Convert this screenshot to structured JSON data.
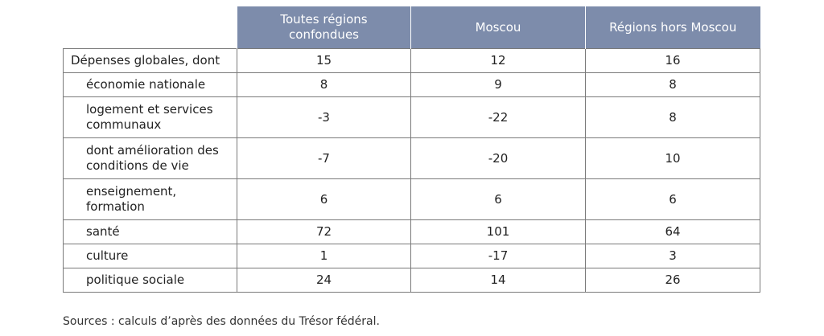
{
  "table": {
    "headers": [
      "",
      "Toutes régions confondues",
      "Moscou",
      "Régions hors Moscou"
    ],
    "rows": [
      {
        "label": "Dépenses globales, dont",
        "values": [
          "15",
          "12",
          "16"
        ]
      },
      {
        "label": "économie nationale",
        "values": [
          "8",
          "9",
          "8"
        ]
      },
      {
        "label": "logement et services communaux",
        "values": [
          "-3",
          "-22",
          "8"
        ]
      },
      {
        "label": "dont amélioration des conditions de vie",
        "values": [
          "-7",
          "-20",
          "10"
        ]
      },
      {
        "label": "enseignement, formation",
        "values": [
          "6",
          "6",
          "6"
        ]
      },
      {
        "label": "santé",
        "values": [
          "72",
          "101",
          "64"
        ]
      },
      {
        "label": "culture",
        "values": [
          "1",
          "-17",
          "3"
        ]
      },
      {
        "label": "politique sociale",
        "values": [
          "24",
          "14",
          "26"
        ]
      }
    ]
  },
  "source": "Sources : calculs d’après des données du Trésor fédéral."
}
